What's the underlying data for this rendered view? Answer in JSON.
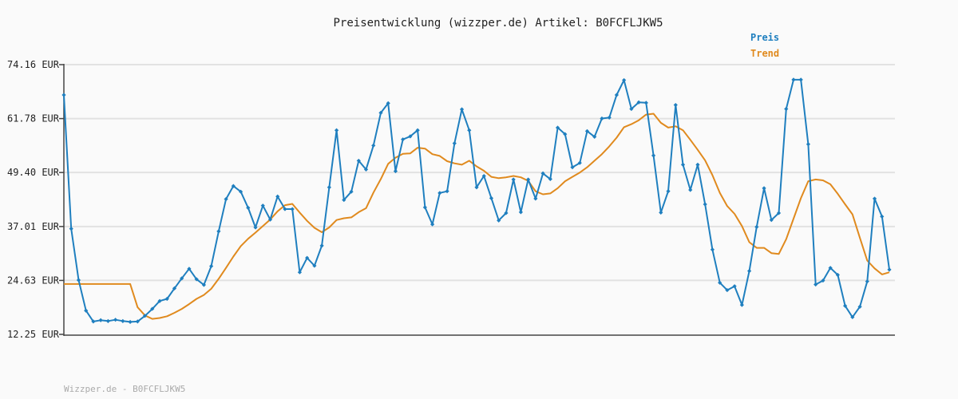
{
  "chart_data": {
    "type": "line",
    "title": "Preisentwicklung (wizzper.de) Artikel: B0FCFLJKW5",
    "xlabel": "",
    "ylabel": "",
    "ylim": [
      12.25,
      74.16
    ],
    "ytick_values": [
      12.25,
      24.63,
      37.01,
      49.4,
      61.78,
      74.16
    ],
    "ytick_labels": [
      "12.25 EUR",
      "24.63 EUR",
      "37.01 EUR",
      "49.40 EUR",
      "61.78 EUR",
      "74.16 EUR"
    ],
    "legend_position": "top-right",
    "grid": true,
    "series": [
      {
        "name": "Preis",
        "color": "#1f7fbf",
        "marker": "diamond",
        "values": [
          67.2,
          36.5,
          24.7,
          17.7,
          15.2,
          15.5,
          15.3,
          15.6,
          15.3,
          15.1,
          15.2,
          16.5,
          18.1,
          19.9,
          20.4,
          22.8,
          25.1,
          27.3,
          24.9,
          23.6,
          27.9,
          35.9,
          43.3,
          46.3,
          45.0,
          41.3,
          36.8,
          41.8,
          38.6,
          43.9,
          41.0,
          41.0,
          26.5,
          29.8,
          28.0,
          32.6,
          46.0,
          59.1,
          43.1,
          45.0,
          52.1,
          50.1,
          55.6,
          63.1,
          65.3,
          49.7,
          57.0,
          57.7,
          59.1,
          41.4,
          37.5,
          44.7,
          45.1,
          56.1,
          63.9,
          59.1,
          46.0,
          48.6,
          43.5,
          38.4,
          40.1,
          47.8,
          40.3,
          47.8,
          43.4,
          49.2,
          47.9,
          59.7,
          58.2,
          50.6,
          51.6,
          58.9,
          57.6,
          61.8,
          62.0,
          67.2,
          70.6,
          64.0,
          65.5,
          65.4,
          53.3,
          40.2,
          45.1,
          64.9,
          51.2,
          45.4,
          51.2,
          42.1,
          31.7,
          24.1,
          22.4,
          23.3,
          19.0,
          26.8,
          36.9,
          45.8,
          38.5,
          40.1,
          64.0,
          70.7,
          70.7,
          55.9,
          23.7,
          24.6,
          27.5,
          25.9,
          18.8,
          16.2,
          18.6,
          24.4,
          43.4,
          39.3,
          27.1
        ]
      },
      {
        "name": "Trend",
        "color": "#e08a1e",
        "marker": "none",
        "values": [
          23.8,
          23.8,
          23.8,
          23.8,
          23.8,
          23.8,
          23.8,
          23.8,
          23.8,
          23.8,
          18.5,
          16.6,
          15.8,
          16.0,
          16.4,
          17.2,
          18.1,
          19.2,
          20.4,
          21.3,
          22.7,
          25.0,
          27.5,
          30.1,
          32.5,
          34.2,
          35.6,
          37.1,
          38.6,
          40.5,
          41.9,
          42.2,
          40.2,
          38.3,
          36.7,
          35.7,
          36.8,
          38.5,
          38.9,
          39.1,
          40.3,
          41.2,
          44.8,
          47.9,
          51.4,
          52.8,
          53.7,
          53.8,
          55.1,
          54.9,
          53.6,
          53.2,
          52.0,
          51.5,
          51.2,
          52.1,
          50.8,
          49.8,
          48.4,
          48.1,
          48.3,
          48.6,
          48.3,
          47.5,
          45.1,
          44.4,
          44.6,
          45.8,
          47.4,
          48.4,
          49.4,
          50.6,
          52.1,
          53.6,
          55.4,
          57.4,
          59.8,
          60.5,
          61.4,
          62.7,
          62.9,
          60.8,
          59.7,
          60.0,
          59.1,
          56.9,
          54.6,
          52.2,
          48.8,
          44.7,
          41.7,
          39.9,
          37.1,
          33.4,
          32.1,
          32.1,
          30.9,
          30.7,
          34.1,
          38.8,
          43.5,
          47.4,
          47.8,
          47.6,
          46.7,
          44.5,
          42.1,
          39.8,
          34.4,
          29.2,
          27.4,
          26.0,
          26.5
        ]
      }
    ]
  },
  "footer": {
    "text": "Wizzper.de - B0FCFLJKW5"
  }
}
